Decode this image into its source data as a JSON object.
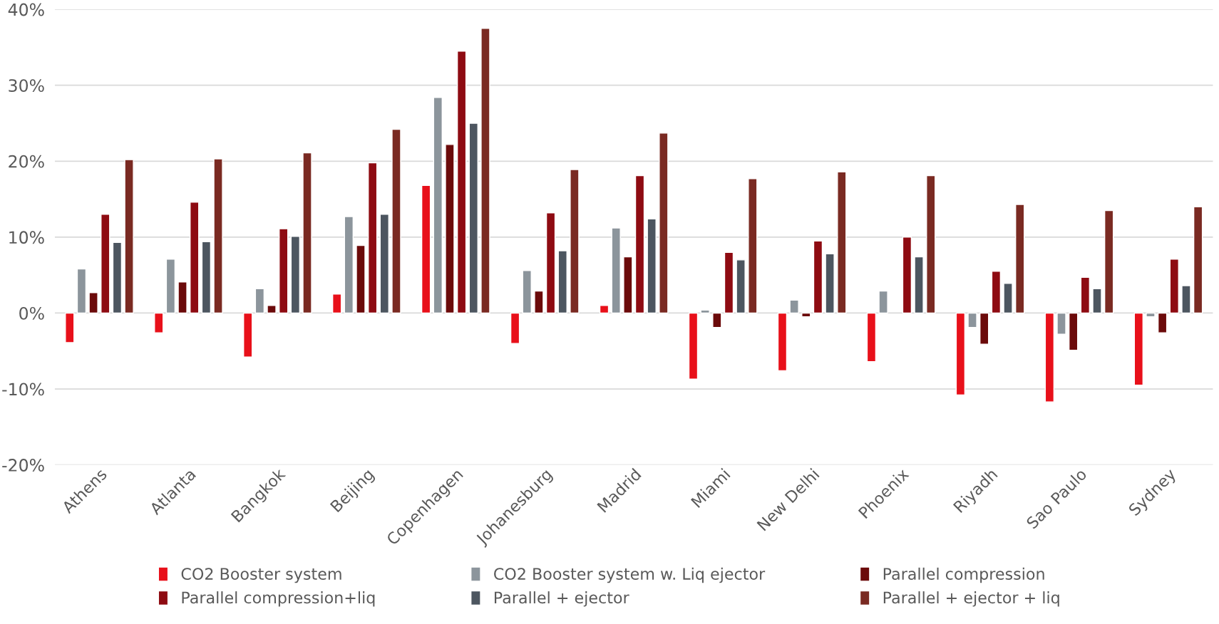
{
  "chart_data": {
    "type": "bar",
    "categories": [
      "Athens",
      "Atlanta",
      "Bangkok",
      "Beijing",
      "Copenhagen",
      "Johanesburg",
      "Madrid",
      "Miami",
      "New Delhi",
      "Phoenix",
      "Riyadh",
      "Sao Paulo",
      "Sydney"
    ],
    "series": [
      {
        "name": "CO2 Booster system",
        "color": "#e8101a",
        "values": [
          -3.9,
          -2.6,
          -5.8,
          2.5,
          16.8,
          -4.0,
          1.0,
          -8.7,
          -7.6,
          -6.4,
          -10.8,
          -11.7,
          -9.5
        ]
      },
      {
        "name": "CO2 Booster system w. Liq ejector",
        "color": "#8c959c",
        "values": [
          5.8,
          7.1,
          3.2,
          12.7,
          28.4,
          5.6,
          11.2,
          0.4,
          1.7,
          2.9,
          -1.9,
          -2.8,
          -0.5
        ]
      },
      {
        "name": "Parallel compression",
        "color": "#6b0a0a",
        "values": [
          2.7,
          4.1,
          1.0,
          8.9,
          22.2,
          2.9,
          7.4,
          -1.9,
          -0.5,
          null,
          -4.1,
          -4.9,
          -2.6
        ]
      },
      {
        "name": "Parallel compression+liq",
        "color": "#8e0b12",
        "values": [
          13.0,
          14.6,
          11.1,
          19.8,
          34.5,
          13.2,
          18.1,
          8.0,
          9.5,
          10.0,
          5.5,
          4.7,
          7.1
        ]
      },
      {
        "name": "Parallel + ejector",
        "color": "#4d5660",
        "values": [
          9.3,
          9.4,
          10.1,
          13.0,
          25.0,
          8.2,
          12.4,
          7.0,
          7.8,
          7.4,
          3.9,
          3.2,
          3.6
        ]
      },
      {
        "name": "Parallel + ejector + liq",
        "color": "#7a2a22",
        "values": [
          20.2,
          20.3,
          21.1,
          24.2,
          37.5,
          18.9,
          23.7,
          17.7,
          18.6,
          18.1,
          14.3,
          13.5,
          14.0
        ]
      }
    ],
    "ylim": [
      -20,
      40
    ],
    "yticks": [
      {
        "value": -20,
        "label": "-20%"
      },
      {
        "value": -10,
        "label": "-10%"
      },
      {
        "value": 0,
        "label": "0%"
      },
      {
        "value": 10,
        "label": "10%"
      },
      {
        "value": 20,
        "label": "20%"
      },
      {
        "value": 30,
        "label": "30%"
      },
      {
        "value": 40,
        "label": "40%"
      }
    ],
    "grid": "y",
    "legend": "bottom"
  }
}
